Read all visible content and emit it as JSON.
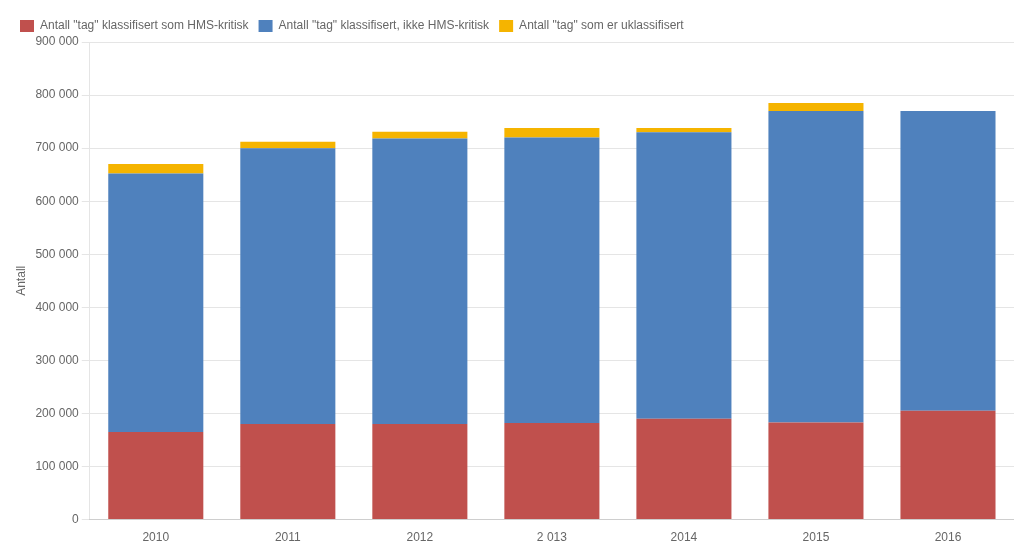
{
  "chart_data": {
    "type": "bar",
    "stacked": true,
    "categories": [
      "2010",
      "2011",
      "2012",
      "2 013",
      "2014",
      "2015",
      "2016"
    ],
    "series": [
      {
        "name": "Antall \"tag\" klassifisert som HMS-kritisk",
        "color": "#c0504d",
        "values": [
          165000,
          180000,
          180000,
          182000,
          190000,
          183000,
          205000
        ]
      },
      {
        "name": "Antall \"tag\" klassifisert, ikke HMS-kritisk",
        "color": "#4f81bd",
        "values": [
          487000,
          520000,
          538000,
          538000,
          540000,
          587000,
          565000
        ]
      },
      {
        "name": "Antall \"tag\" som er uklassifisert",
        "color": "#f5b400",
        "values": [
          18000,
          12000,
          13000,
          18000,
          8000,
          15000,
          0
        ]
      }
    ],
    "ylabel": "Antall",
    "ylim": [
      0,
      900000
    ],
    "yticks": [
      0,
      {
        "value": 100000,
        "label": "100 000"
      },
      {
        "value": 200000,
        "label": "200 000"
      },
      {
        "value": 300000,
        "label": "300 000"
      },
      {
        "value": 400000,
        "label": "400 000"
      },
      {
        "value": 500000,
        "label": "500 000"
      },
      {
        "value": 600000,
        "label": "600 000"
      },
      {
        "value": 700000,
        "label": "700 000"
      },
      {
        "value": 800000,
        "label": "800 000"
      },
      {
        "value": 900000,
        "label": "900 000"
      }
    ],
    "grid": true,
    "legend": "upper left"
  }
}
